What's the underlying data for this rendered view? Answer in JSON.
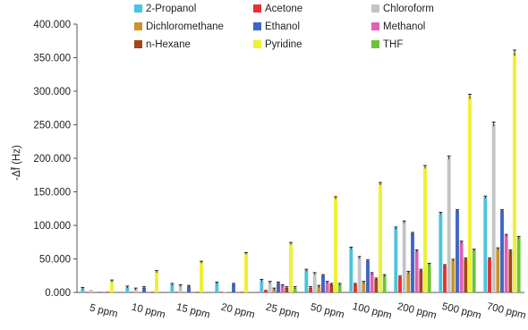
{
  "chart_data": {
    "type": "bar",
    "ylabel": "-Δf̄ (Hz)",
    "ylim": [
      0,
      400
    ],
    "y_ticks": [
      "0.000",
      "50.000",
      "100.000",
      "150.000",
      "200.000",
      "250.000",
      "300.000",
      "350.000",
      "400.000"
    ],
    "grid": false,
    "legend_position": "top",
    "categories": [
      "5 ppm",
      "10 ppm",
      "15 ppm",
      "20 ppm",
      "25 ppm",
      "50 ppm",
      "100 ppm",
      "200 ppm",
      "500 ppm",
      "700 ppm"
    ],
    "series": [
      {
        "name": "2-Propanol",
        "color": "#4cc3dc",
        "values": [
          6,
          8,
          12,
          14,
          18,
          33,
          66,
          96,
          118,
          142
        ]
      },
      {
        "name": "Acetone",
        "color": "#e8302e",
        "values": [
          1,
          1,
          1,
          1,
          4,
          7,
          12,
          23,
          40,
          50
        ]
      },
      {
        "name": "Chloroform",
        "color": "#c4c4c4",
        "values": [
          4,
          5,
          10,
          1,
          15,
          28,
          52,
          105,
          201,
          251
        ]
      },
      {
        "name": "Dichloromethane",
        "color": "#c8952a",
        "values": [
          1,
          1,
          1,
          1,
          5,
          9,
          15,
          30,
          48,
          65
        ]
      },
      {
        "name": "Ethanol",
        "color": "#3f66c4",
        "values": [
          1,
          7,
          9,
          12,
          14,
          25,
          47,
          88,
          122,
          122
        ]
      },
      {
        "name": "Methanol",
        "color": "#e060b6",
        "values": [
          1,
          1,
          1,
          1,
          10,
          15,
          28,
          62,
          75,
          85
        ]
      },
      {
        "name": "n-Hexane",
        "color": "#a2461b",
        "values": [
          1,
          1,
          1,
          1,
          7,
          12,
          20,
          33,
          50,
          62
        ]
      },
      {
        "name": "Pyridine",
        "color": "#eef031",
        "values": [
          17,
          31,
          45,
          58,
          73,
          141,
          162,
          187,
          292,
          357
        ]
      },
      {
        "name": "THF",
        "color": "#6cc43a",
        "values": [
          1,
          1,
          1,
          1,
          7,
          12,
          25,
          42,
          63,
          82
        ]
      }
    ]
  }
}
